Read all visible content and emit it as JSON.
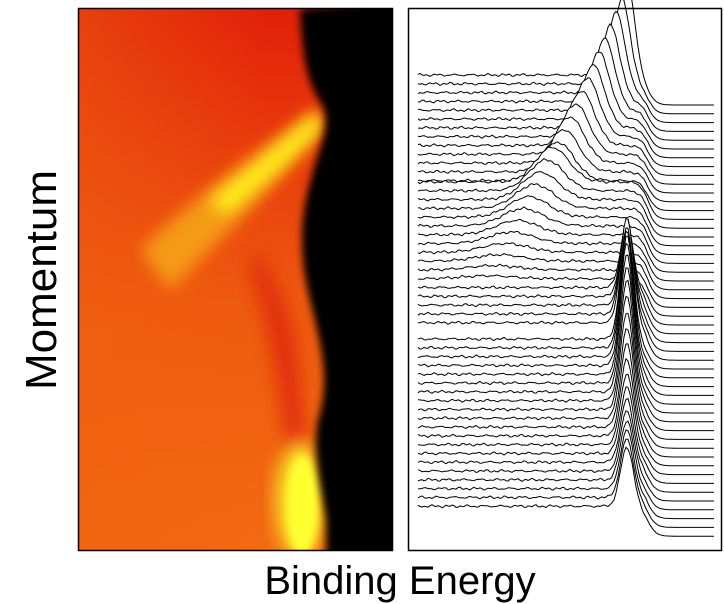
{
  "figure": {
    "y_label": "Momentum",
    "x_label": "Binding Energy"
  }
}
